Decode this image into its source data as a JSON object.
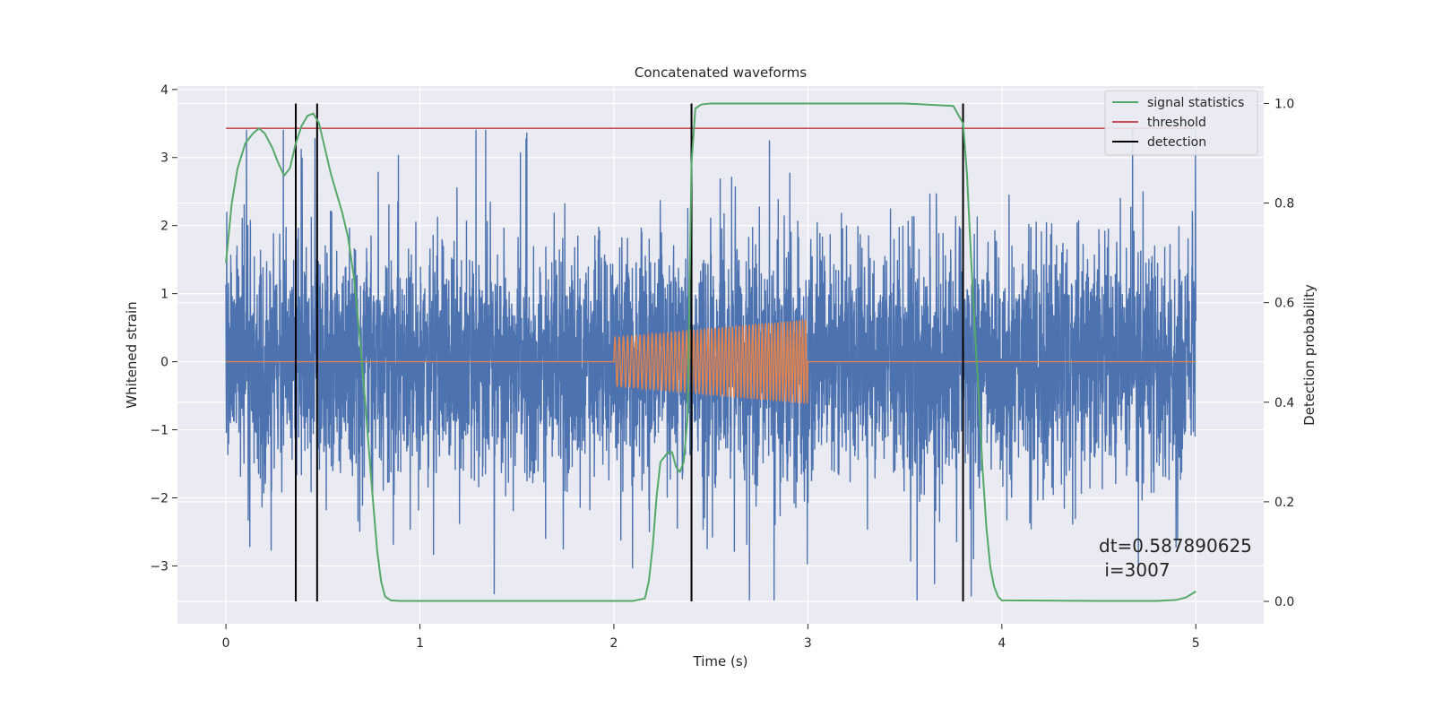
{
  "chart_data": {
    "type": "line",
    "title": "Concatenated waveforms",
    "xlabel": "Time (s)",
    "ylabel": "Whitened strain",
    "ylabel_right": "Detection probability",
    "xlim": [
      -0.25,
      5.35
    ],
    "ylim": [
      -3.85,
      4.05
    ],
    "ylim_right": [
      -0.045,
      1.035
    ],
    "xticks": [
      "0",
      "1",
      "2",
      "3",
      "4",
      "5"
    ],
    "yticks": [
      "−3",
      "−2",
      "−1",
      "0",
      "1",
      "2",
      "3",
      "4"
    ],
    "yticks_right": [
      "0.0",
      "0.2",
      "0.4",
      "0.6",
      "0.8",
      "1.0"
    ],
    "grid": true,
    "legend_position": "upper right",
    "legend": [
      {
        "label": "signal statistics",
        "color": "#55a868"
      },
      {
        "label": "threshold",
        "color": "#c44e52"
      },
      {
        "label": "detection",
        "color": "#000000"
      }
    ],
    "series": [
      {
        "role": "whitened_strain_noise",
        "axis": "left",
        "color": "#4c72b0",
        "t_range": [
          0,
          5
        ],
        "amplitude_range": [
          -3.5,
          3.4
        ]
      },
      {
        "role": "injected_chirp",
        "axis": "left",
        "color": "#dd8452",
        "segment": [
          2.0,
          3.0
        ],
        "amplitude_start": 0.36,
        "amplitude_end": 0.62
      },
      {
        "name": "signal statistics",
        "axis": "right",
        "color": "#55a868",
        "t": [
          0.0,
          0.03,
          0.06,
          0.1,
          0.14,
          0.17,
          0.2,
          0.24,
          0.27,
          0.3,
          0.33,
          0.36,
          0.39,
          0.42,
          0.45,
          0.48,
          0.51,
          0.54,
          0.57,
          0.6,
          0.63,
          0.66,
          0.69,
          0.72,
          0.75,
          0.78,
          0.8,
          0.82,
          0.85,
          0.9,
          1.0,
          1.5,
          2.0,
          2.1,
          2.16,
          2.18,
          2.2,
          2.22,
          2.24,
          2.26,
          2.28,
          2.3,
          2.32,
          2.34,
          2.36,
          2.38,
          2.4,
          2.42,
          2.45,
          2.5,
          2.6,
          3.0,
          3.5,
          3.75,
          3.8,
          3.82,
          3.84,
          3.86,
          3.88,
          3.9,
          3.92,
          3.94,
          3.96,
          3.98,
          4.0,
          4.5,
          4.8,
          4.9,
          4.95,
          5.0
        ],
        "values": [
          0.68,
          0.8,
          0.87,
          0.92,
          0.94,
          0.95,
          0.94,
          0.91,
          0.88,
          0.855,
          0.87,
          0.92,
          0.955,
          0.975,
          0.98,
          0.96,
          0.91,
          0.86,
          0.82,
          0.78,
          0.73,
          0.65,
          0.53,
          0.39,
          0.24,
          0.1,
          0.04,
          0.01,
          0.002,
          0.001,
          0.001,
          0.001,
          0.001,
          0.001,
          0.006,
          0.04,
          0.11,
          0.21,
          0.28,
          0.29,
          0.3,
          0.3,
          0.27,
          0.26,
          0.28,
          0.37,
          0.88,
          0.99,
          0.998,
          1.0,
          1.0,
          1.0,
          1.0,
          0.995,
          0.96,
          0.86,
          0.7,
          0.55,
          0.42,
          0.27,
          0.15,
          0.07,
          0.03,
          0.01,
          0.002,
          0.001,
          0.001,
          0.003,
          0.008,
          0.02
        ]
      },
      {
        "name": "threshold",
        "axis": "right",
        "color": "#c44e52",
        "t": [
          0,
          5
        ],
        "values": [
          0.95,
          0.95
        ]
      },
      {
        "name": "detection",
        "axis": "right",
        "color": "#000000",
        "type": "vlines",
        "x": [
          0.36,
          0.47,
          2.4,
          3.8
        ],
        "ymin": 0.0,
        "ymax": 1.0
      }
    ],
    "annotation": {
      "line1": "dt=0.587890625",
      "line2": " i=3007",
      "x": 4.5,
      "y_right": 0.085
    }
  }
}
